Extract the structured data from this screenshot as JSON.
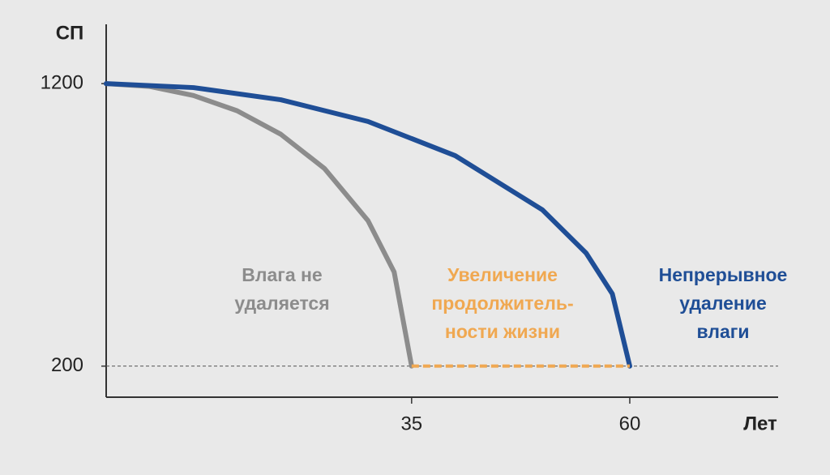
{
  "chart_data": {
    "type": "line",
    "y_label": "СП",
    "x_label": "Лет",
    "xlim": [
      0,
      77
    ],
    "ylim": [
      90,
      1410
    ],
    "xticks": [
      35,
      60
    ],
    "yticks": [
      200,
      1200
    ],
    "reference_line": 200,
    "series": [
      {
        "name": "Влага не\nудаляется",
        "color": "#8c8c8c",
        "style": "solid",
        "x": [
          0,
          5,
          10,
          15,
          20,
          25,
          30,
          33,
          35
        ],
        "values": [
          1200,
          1190,
          1158,
          1104,
          1021,
          900,
          715,
          533,
          200
        ]
      },
      {
        "name": "Непрерывное\nудаление\nвлаги",
        "color": "#1f4e96",
        "style": "solid",
        "x": [
          0,
          10,
          20,
          30,
          40,
          50,
          55,
          58,
          60
        ],
        "values": [
          1200,
          1186,
          1143,
          1066,
          945,
          753,
          600,
          456,
          200
        ]
      },
      {
        "name": "Увеличение\nпродолжитель-\nности жизни",
        "color": "#f0a851",
        "style": "dashed",
        "x": [
          35,
          60
        ],
        "values": [
          200,
          200
        ]
      }
    ]
  }
}
